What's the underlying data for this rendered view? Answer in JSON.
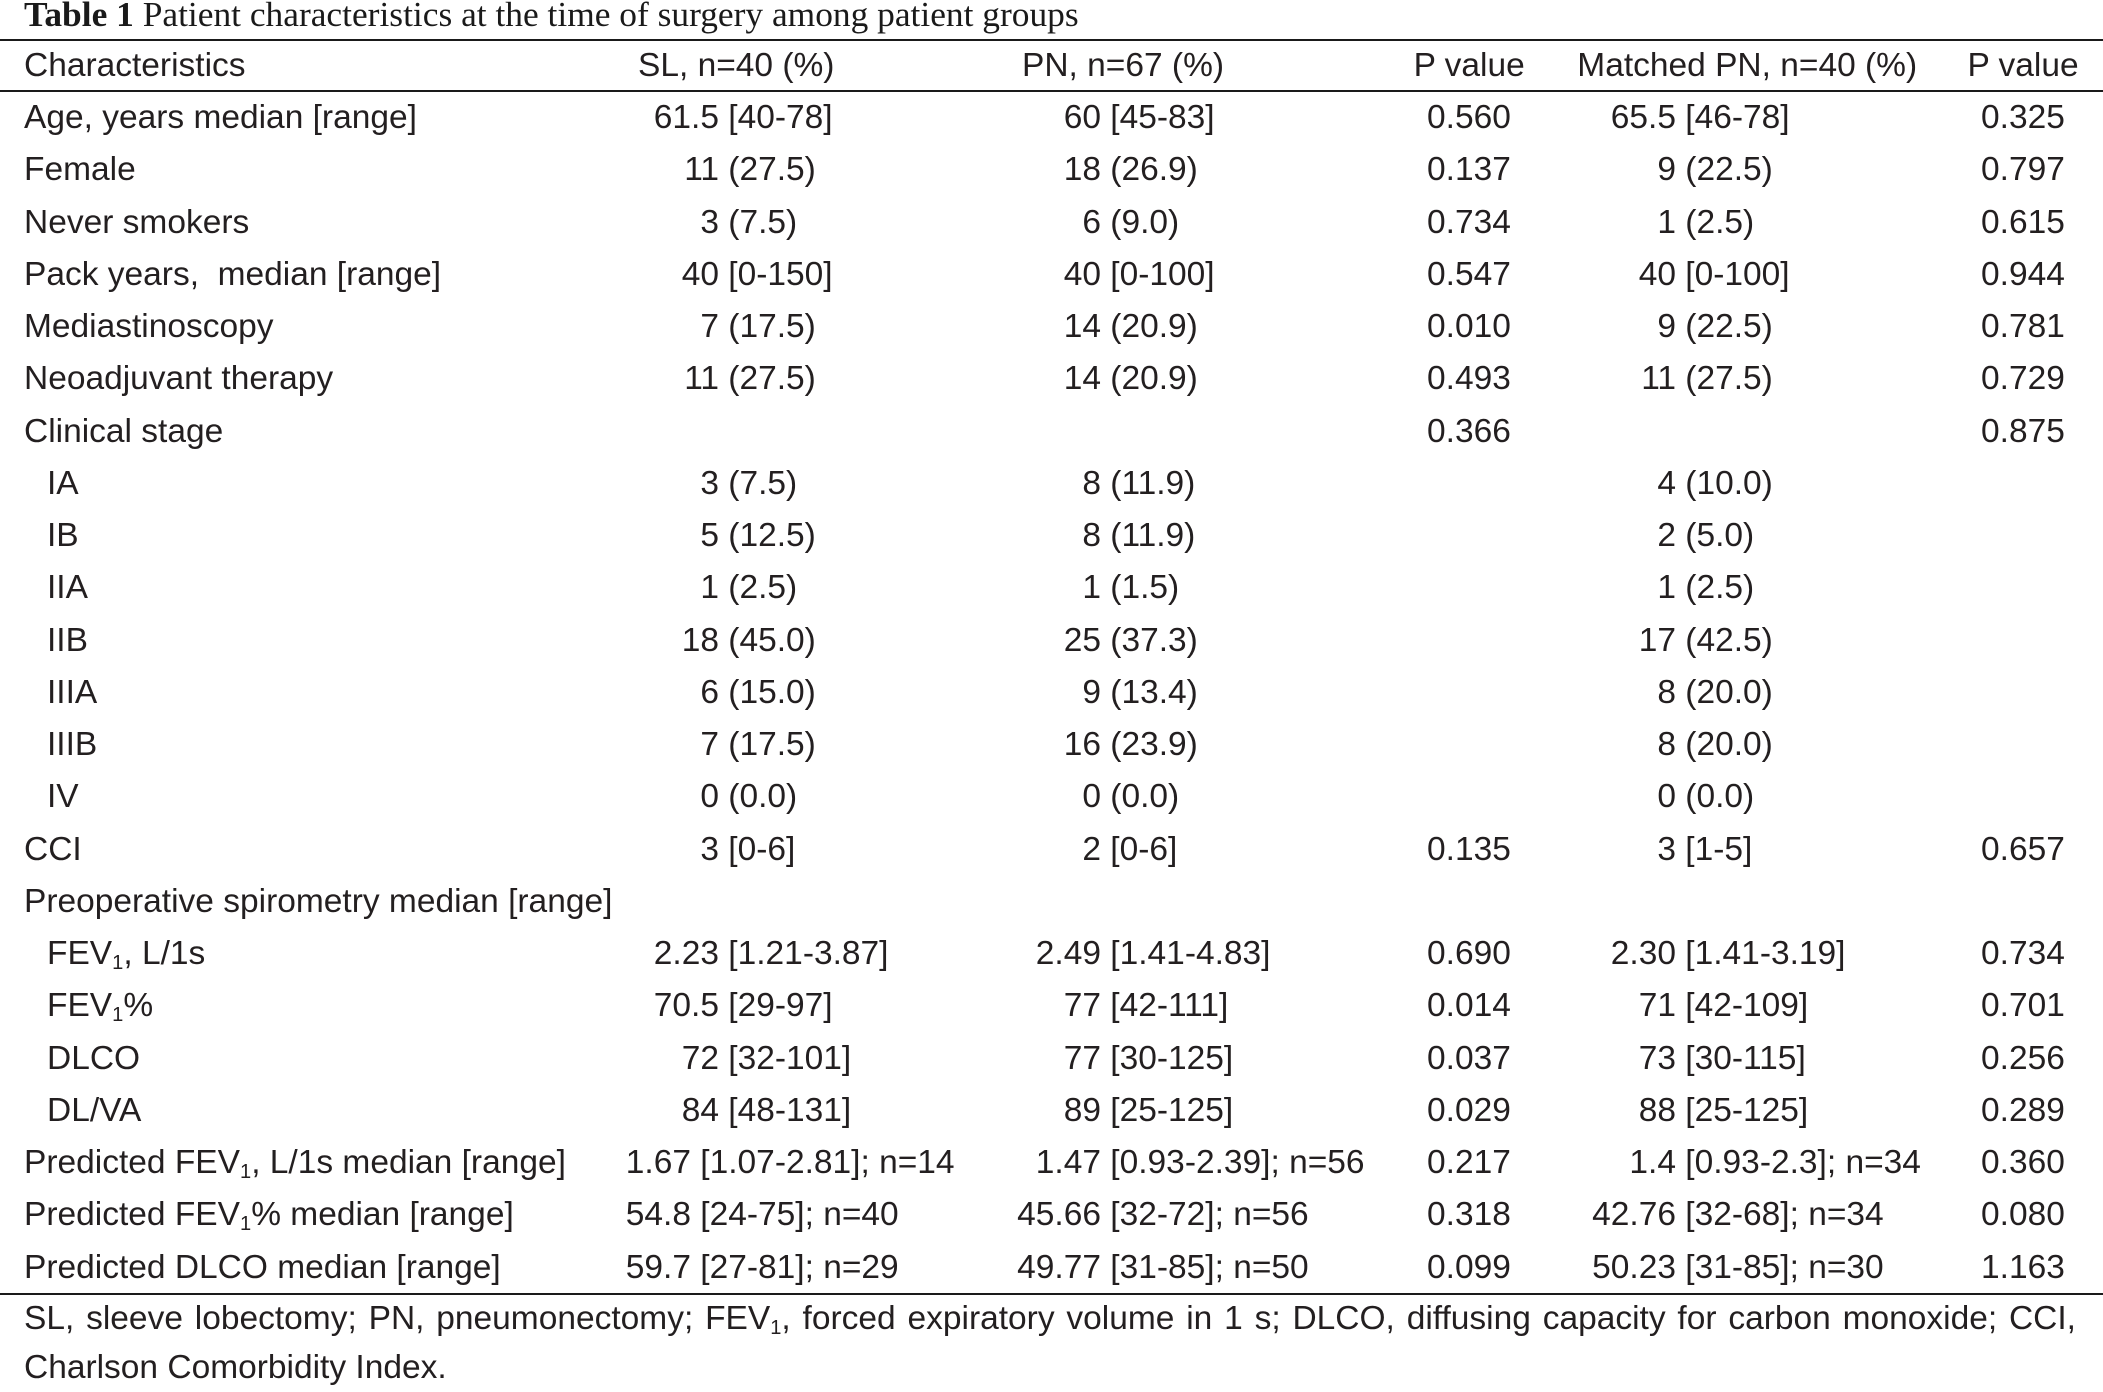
{
  "title": {
    "number": "Table 1",
    "caption": "Patient characteristics at the time of surgery among patient groups"
  },
  "table": {
    "header": {
      "characteristics": "Characteristics",
      "sl": "SL, n=40 (%)",
      "pn": "PN, n=67 (%)",
      "p_value": "P value",
      "matched_pn": "Matched PN, n=40 (%)",
      "matched_p_value": "P value"
    },
    "rows": [
      {
        "label": "Age, years median [range]",
        "sl": "61.5 [40-78]",
        "pn": "60 [45-83]",
        "p_value": "0.560",
        "matched_pn": "65.5 [46-78]",
        "matched_p_value": "0.325"
      },
      {
        "label": "Female",
        "sl": "11 (27.5)",
        "pn": "18 (26.9)",
        "p_value": "0.137",
        "matched_pn": "9 (22.5)",
        "matched_p_value": "0.797"
      },
      {
        "label": "Never smokers",
        "sl": "3 (7.5)",
        "pn": "6 (9.0)",
        "p_value": "0.734",
        "matched_pn": "1 (2.5)",
        "matched_p_value": "0.615"
      },
      {
        "label": "Pack years,  median [range]",
        "sl": "40 [0-150]",
        "pn": "40 [0-100]",
        "p_value": "0.547",
        "matched_pn": "40 [0-100]",
        "matched_p_value": "0.944"
      },
      {
        "label": "Mediastinoscopy",
        "sl": "7 (17.5)",
        "pn": "14 (20.9)",
        "p_value": "0.010",
        "matched_pn": "9 (22.5)",
        "matched_p_value": "0.781"
      },
      {
        "label": "Neoadjuvant therapy",
        "sl": "11 (27.5)",
        "pn": "14 (20.9)",
        "p_value": "0.493",
        "matched_pn": "11 (27.5)",
        "matched_p_value": "0.729"
      },
      {
        "label": "Clinical stage",
        "p_value": "0.366",
        "matched_p_value": "0.875",
        "subrows": [
          {
            "label": "IA",
            "sl": "3 (7.5)",
            "pn": "8 (11.9)",
            "matched_pn": "4 (10.0)"
          },
          {
            "label": "IB",
            "sl": "5 (12.5)",
            "pn": "8 (11.9)",
            "matched_pn": "2 (5.0)"
          },
          {
            "label": "IIA",
            "sl": "1 (2.5)",
            "pn": "1 (1.5)",
            "matched_pn": "1 (2.5)"
          },
          {
            "label": "IIB",
            "sl": "18 (45.0)",
            "pn": "25 (37.3)",
            "matched_pn": "17 (42.5)"
          },
          {
            "label": "IIIA",
            "sl": "6 (15.0)",
            "pn": "9 (13.4)",
            "matched_pn": "8 (20.0)"
          },
          {
            "label": "IIIB",
            "sl": "7 (17.5)",
            "pn": "16 (23.9)",
            "matched_pn": "8 (20.0)"
          },
          {
            "label": "IV",
            "sl": "0 (0.0)",
            "pn": "0 (0.0)",
            "matched_pn": "0 (0.0)"
          }
        ]
      },
      {
        "label": "CCI",
        "sl": "3 [0-6]",
        "pn": "2 [0-6]",
        "p_value": "0.135",
        "matched_pn": "3 [1-5]",
        "matched_p_value": "0.657"
      },
      {
        "label": "Preoperative spirometry median [range]",
        "subrows": [
          {
            "label": "FEV1, L/1s",
            "sl": "2.23 [1.21-3.87]",
            "pn": "2.49 [1.41-4.83]",
            "p_value": "0.690",
            "matched_pn": "2.30 [1.41-3.19]",
            "matched_p_value": "0.734"
          },
          {
            "label": "FEV1%",
            "sl": "70.5 [29-97]",
            "pn": "77 [42-111]",
            "p_value": "0.014",
            "matched_pn": "71 [42-109]",
            "matched_p_value": "0.701"
          },
          {
            "label": "DLCO",
            "sl": "72 [32-101]",
            "pn": "77 [30-125]",
            "p_value": "0.037",
            "matched_pn": "73 [30-115]",
            "matched_p_value": "0.256"
          },
          {
            "label": "DL/VA",
            "sl": "84 [48-131]",
            "pn": "89 [25-125]",
            "p_value": "0.029",
            "matched_pn": "88 [25-125]",
            "matched_p_value": "0.289"
          }
        ]
      },
      {
        "label": "Predicted FEV1, L/1s median [range]",
        "sl": "1.67 [1.07-2.81]; n=14",
        "pn": "1.47 [0.93-2.39]; n=56",
        "p_value": "0.217",
        "matched_pn": "1.4 [0.93-2.3]; n=34",
        "matched_p_value": "0.360"
      },
      {
        "label": "Predicted FEV1% median [range]",
        "sl": "54.8 [24-75]; n=40",
        "pn": "45.66 [32-72]; n=56",
        "p_value": "0.318",
        "matched_pn": "42.76 [32-68]; n=34",
        "matched_p_value": "0.080"
      },
      {
        "label": "Predicted DLCO median [range]",
        "sl": "59.7 [27-81]; n=29",
        "pn": "49.77 [31-85]; n=50",
        "p_value": "0.099",
        "matched_pn": "50.23 [31-85]; n=30",
        "matched_p_value": "1.163"
      }
    ]
  },
  "footnote": "SL, sleeve lobectomy; PN, pneumonectomy; FEV1, forced expiratory volume in 1 s; DLCO, diffusing capacity for carbon monoxide; CCI, Charlson Comorbidity Index."
}
